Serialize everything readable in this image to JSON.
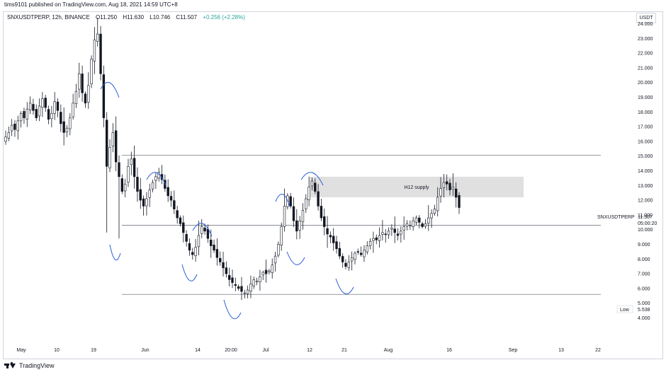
{
  "header": {
    "published_text": "tims9101 published on TradingView.com, Aug 18, 2021 14:59 UTC+8",
    "symbol": "SNXUSDTPERP, 12h, BINANCE",
    "open": "O11.250",
    "high": "H11.630",
    "low": "L10.746",
    "close": "C11.507",
    "change": "+0.256 (+2.28%)"
  },
  "currency_label": "USDT",
  "footer": {
    "brand": "TradingView"
  },
  "price_tag": {
    "symbol": "SNXUSDTPERP",
    "price": "11.507",
    "countdown": "05:00:20"
  },
  "low_tag": {
    "label": "Low",
    "value": "5.538"
  },
  "zone_label": "H12 supply",
  "colors": {
    "candle": "#131722",
    "level_line": "#787b86",
    "arc": "#2a5ed6",
    "zone": "#e0e0e0",
    "background": "#ffffff"
  },
  "chart_data": {
    "type": "candlestick",
    "y_axis": {
      "ticks": [
        "24.000",
        "23.000",
        "22.000",
        "21.000",
        "20.000",
        "19.000",
        "18.000",
        "17.000",
        "16.000",
        "15.000",
        "14.000",
        "13.000",
        "12.000",
        "11.000",
        "10.000",
        "9.000",
        "8.000",
        "7.000",
        "6.000",
        "5.000",
        "4.000"
      ],
      "range": [
        3.6,
        24.3
      ],
      "position": "right"
    },
    "x_axis": {
      "ticks": [
        "May",
        "10",
        "19",
        "Jun",
        "14",
        "20:00",
        "Jul",
        "12",
        "21",
        "Aug",
        "16",
        "Sep",
        "13",
        "22"
      ]
    },
    "horizontal_levels": [
      15.05,
      10.3,
      5.6
    ],
    "supply_zone": {
      "label": "H12 supply",
      "y_low": 12.2,
      "y_high": 13.6
    },
    "close_path": [
      16.3,
      16.6,
      17.1,
      16.8,
      17.4,
      17.9,
      17.6,
      18.2,
      18.6,
      18.1,
      17.6,
      18.4,
      18.9,
      18.3,
      17.5,
      17.9,
      18.7,
      18.1,
      17.2,
      16.6,
      16.9,
      17.6,
      18.6,
      19.4,
      20.6,
      19.3,
      18.6,
      19.8,
      21.6,
      22.9,
      23.3,
      20.6,
      17.6,
      14.3,
      15.6,
      16.6,
      14.6,
      13.6,
      12.6,
      13.1,
      14.3,
      14.8,
      13.6,
      12.6,
      12.0,
      11.6,
      12.1,
      12.7,
      13.2,
      13.6,
      13.9,
      13.4,
      12.8,
      12.3,
      12.0,
      11.4,
      10.8,
      10.4,
      9.8,
      9.2,
      8.6,
      8.3,
      8.8,
      9.6,
      10.2,
      9.9,
      9.4,
      8.9,
      8.6,
      8.1,
      7.8,
      7.4,
      7.0,
      6.6,
      6.4,
      6.2,
      6.0,
      5.8,
      5.7,
      5.9,
      6.3,
      6.6,
      6.5,
      6.8,
      7.1,
      7.0,
      7.2,
      7.6,
      8.2,
      9.0,
      10.2,
      11.6,
      12.3,
      11.6,
      10.6,
      9.9,
      10.6,
      11.3,
      12.1,
      12.9,
      13.3,
      12.6,
      11.6,
      10.8,
      10.2,
      9.7,
      9.5,
      9.1,
      8.7,
      8.2,
      7.8,
      7.5,
      7.8,
      8.1,
      8.4,
      8.5,
      8.3,
      8.6,
      8.9,
      9.2,
      9.4,
      9.3,
      9.6,
      9.8,
      9.7,
      9.9,
      10.1,
      9.8,
      9.6,
      9.9,
      10.2,
      10.4,
      10.3,
      10.6,
      10.8,
      10.5,
      10.2,
      10.4,
      10.8,
      11.1,
      11.4,
      12.2,
      12.8,
      13.2,
      13.1,
      12.7,
      12.9,
      12.2,
      11.5
    ]
  }
}
